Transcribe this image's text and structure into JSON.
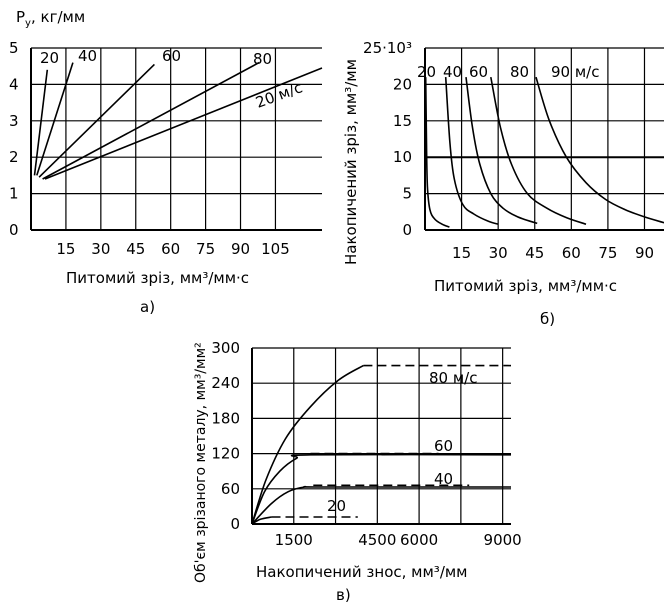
{
  "figure": {
    "panel_labels": [
      "а)",
      "б)",
      "в)"
    ]
  },
  "chart_data": [
    {
      "type": "line",
      "ylabel": "P",
      "ylabel_sub": "y",
      "ylabel_unit": ", кг/мм",
      "xlabel": "Питомий зріз, мм³/мм·с",
      "xlim": [
        0,
        125
      ],
      "ylim": [
        0,
        5
      ],
      "x_ticks": [
        "15",
        "30",
        "45",
        "60",
        "75",
        "90",
        "105"
      ],
      "y_ticks": [
        "0",
        "1",
        "2",
        "3",
        "4",
        "5"
      ],
      "grid": true,
      "curve_labels": [
        "20",
        "40",
        "60",
        "80",
        "20 м/с"
      ],
      "series": [
        {
          "name": "20",
          "points": [
            [
              1.5,
              1.5
            ],
            [
              7,
              4.4
            ]
          ]
        },
        {
          "name": "40",
          "points": [
            [
              2.5,
              1.5
            ],
            [
              18,
              4.6
            ]
          ]
        },
        {
          "name": "60",
          "points": [
            [
              3.5,
              1.45
            ],
            [
              53,
              4.55
            ]
          ]
        },
        {
          "name": "80",
          "points": [
            [
              5,
              1.4
            ],
            [
              98,
              4.6
            ]
          ]
        },
        {
          "name": "20 м/с",
          "points": [
            [
              6,
              1.4
            ],
            [
              125,
              4.45
            ]
          ]
        }
      ]
    },
    {
      "type": "line",
      "ylabel": "Накопичений зріз, мм³/мм",
      "xlabel": "Питомий зріз, мм³/мм·с",
      "xlim": [
        0,
        98
      ],
      "ylim": [
        0,
        25
      ],
      "x_ticks": [
        "15",
        "30",
        "45",
        "60",
        "75",
        "90"
      ],
      "y_ticks": [
        "0",
        "5",
        "10",
        "15",
        "20",
        "25·10³"
      ],
      "grid": true,
      "curve_labels": [
        "20",
        "40",
        "60",
        "80",
        "90 м/с"
      ],
      "series": [
        {
          "name": "20",
          "points": [
            [
              0.3,
              21
            ],
            [
              0.6,
              12
            ],
            [
              1.0,
              6
            ],
            [
              2.0,
              2.8
            ],
            [
              4.0,
              1.5
            ],
            [
              7.0,
              0.8
            ],
            [
              10.0,
              0.4
            ]
          ]
        },
        {
          "name": "40",
          "points": [
            [
              8.5,
              21
            ],
            [
              10.2,
              12
            ],
            [
              12.0,
              7
            ],
            [
              15.5,
              3.5
            ],
            [
              20.0,
              2.2
            ],
            [
              26.0,
              1.2
            ],
            [
              30.0,
              0.8
            ]
          ]
        },
        {
          "name": "60",
          "points": [
            [
              16.8,
              21
            ],
            [
              19.5,
              14
            ],
            [
              22.5,
              9
            ],
            [
              27.0,
              5
            ],
            [
              32.0,
              3
            ],
            [
              38.0,
              1.8
            ],
            [
              46.0,
              0.9
            ]
          ]
        },
        {
          "name": "80",
          "points": [
            [
              27.0,
              21
            ],
            [
              31.0,
              14
            ],
            [
              35.5,
              9
            ],
            [
              42.0,
              5
            ],
            [
              50.0,
              3
            ],
            [
              58.0,
              1.7
            ],
            [
              66.0,
              0.8
            ]
          ]
        },
        {
          "name": "90 м/с",
          "points": [
            [
              45.5,
              21
            ],
            [
              51.0,
              15
            ],
            [
              58.0,
              10
            ],
            [
              66.0,
              6.5
            ],
            [
              74.0,
              4.2
            ],
            [
              82.0,
              2.8
            ],
            [
              90.0,
              1.8
            ],
            [
              98.0,
              1.0
            ]
          ]
        }
      ]
    },
    {
      "type": "line",
      "ylabel": "Об'єм зрізаного металу, мм³/мм²",
      "xlabel": "Накопичений знос, мм³/мм",
      "xlim": [
        0,
        9300
      ],
      "ylim": [
        0,
        300
      ],
      "x_ticks": [
        "1500",
        "4500",
        "6000",
        "9000"
      ],
      "y_ticks": [
        "0",
        "60",
        "120",
        "180",
        "240",
        "300"
      ],
      "grid": true,
      "curve_labels": [
        "80 м/с",
        "60",
        "40",
        "20"
      ],
      "series": [
        {
          "name": "80 м/с",
          "style": "solid",
          "points": [
            [
              0,
              0
            ],
            [
              500,
              75
            ],
            [
              1200,
              145
            ],
            [
              2100,
              200
            ],
            [
              3100,
              245
            ],
            [
              4000,
              270
            ]
          ]
        },
        {
          "name": "80 м/с",
          "style": "dashed",
          "points": [
            [
              4000,
              270
            ],
            [
              9300,
              270
            ]
          ]
        },
        {
          "name": "60",
          "style": "solid",
          "points": [
            [
              0,
              0
            ],
            [
              450,
              55
            ],
            [
              1000,
              90
            ],
            [
              1600,
              112
            ],
            [
              2100,
              118
            ],
            [
              9300,
              118
            ]
          ]
        },
        {
          "name": "60",
          "style": "dashed",
          "points": [
            [
              2100,
              120
            ],
            [
              6700,
              120
            ]
          ]
        },
        {
          "name": "40",
          "style": "solid",
          "points": [
            [
              0,
              0
            ],
            [
              700,
              35
            ],
            [
              1300,
              55
            ],
            [
              1900,
              63
            ],
            [
              2600,
              63
            ],
            [
              9300,
              63
            ]
          ]
        },
        {
          "name": "40",
          "style": "dashed",
          "points": [
            [
              2200,
              66
            ],
            [
              7800,
              66
            ]
          ]
        },
        {
          "name": "20",
          "style": "solid",
          "points": [
            [
              0,
              0
            ],
            [
              300,
              8
            ],
            [
              700,
              12
            ]
          ]
        },
        {
          "name": "20",
          "style": "dashed",
          "points": [
            [
              700,
              12
            ],
            [
              3800,
              12
            ]
          ]
        }
      ]
    }
  ]
}
